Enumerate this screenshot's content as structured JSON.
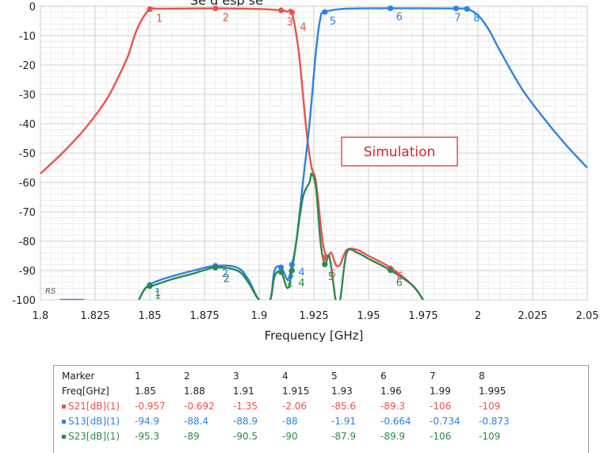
{
  "chart_data": {
    "type": "line",
    "title_fragment": "Se    d   esp  se",
    "xlabel": "Frequency [GHz]",
    "ylabel": "",
    "xlim": [
      1.8,
      2.05
    ],
    "ylim": [
      -100,
      0
    ],
    "x_ticks": [
      1.8,
      1.825,
      1.85,
      1.875,
      1.9,
      1.925,
      1.95,
      1.975,
      2.0,
      2.025,
      2.05
    ],
    "x_tick_labels": [
      "1.8",
      "1.825",
      "1.85",
      "1.875",
      "1.9",
      "1.925",
      "1.95",
      "1.975",
      "2",
      "2.025",
      "2.05"
    ],
    "y_ticks": [
      0,
      -10,
      -20,
      -30,
      -40,
      -50,
      -60,
      -70,
      -80,
      -90,
      -100
    ],
    "y_tick_labels": [
      "0",
      "-10",
      "-20",
      "-30",
      "-40",
      "-50",
      "-60",
      "-70",
      "-80",
      "-90",
      "-100"
    ],
    "grid": true,
    "corner_label": "RS",
    "annotation": "Simulation",
    "series": [
      {
        "name": "S21[dB](1)",
        "color": "#f0504a",
        "points": [
          [
            1.8,
            -57
          ],
          [
            1.81,
            -50
          ],
          [
            1.82,
            -42
          ],
          [
            1.83,
            -32
          ],
          [
            1.835,
            -25
          ],
          [
            1.84,
            -17
          ],
          [
            1.843,
            -10
          ],
          [
            1.846,
            -5
          ],
          [
            1.85,
            -1
          ],
          [
            1.855,
            -0.8
          ],
          [
            1.88,
            -0.7
          ],
          [
            1.9,
            -0.9
          ],
          [
            1.91,
            -1.35
          ],
          [
            1.913,
            -1.8
          ],
          [
            1.915,
            -2.1
          ],
          [
            1.918,
            -15
          ],
          [
            1.92,
            -30
          ],
          [
            1.922,
            -45
          ],
          [
            1.924,
            -55
          ],
          [
            1.926,
            -60
          ],
          [
            1.929,
            -80
          ],
          [
            1.931,
            -85
          ],
          [
            1.933,
            -84
          ],
          [
            1.935,
            -88
          ],
          [
            1.937,
            -88
          ],
          [
            1.94,
            -83
          ],
          [
            1.945,
            -83
          ],
          [
            1.95,
            -85
          ],
          [
            1.96,
            -89
          ],
          [
            1.97,
            -95
          ],
          [
            1.975,
            -100
          ]
        ]
      },
      {
        "name": "S13[dB](1)",
        "color": "#2b83e6",
        "points": [
          [
            1.845,
            -100
          ],
          [
            1.848,
            -96
          ],
          [
            1.852,
            -94
          ],
          [
            1.86,
            -92
          ],
          [
            1.87,
            -90
          ],
          [
            1.88,
            -88.4
          ],
          [
            1.89,
            -89
          ],
          [
            1.895,
            -93
          ],
          [
            1.9,
            -100
          ],
          [
            1.905,
            -100
          ],
          [
            1.907,
            -90
          ],
          [
            1.91,
            -88.9
          ],
          [
            1.913,
            -93
          ],
          [
            1.915,
            -88
          ],
          [
            1.917,
            -80
          ],
          [
            1.92,
            -60
          ],
          [
            1.923,
            -40
          ],
          [
            1.926,
            -15
          ],
          [
            1.928,
            -4
          ],
          [
            1.93,
            -1.9
          ],
          [
            1.94,
            -0.8
          ],
          [
            1.96,
            -0.66
          ],
          [
            1.99,
            -0.73
          ],
          [
            1.995,
            -0.9
          ],
          [
            2.0,
            -3
          ],
          [
            2.005,
            -8
          ],
          [
            2.01,
            -15
          ],
          [
            2.02,
            -28
          ],
          [
            2.03,
            -38
          ],
          [
            2.04,
            -47
          ],
          [
            2.05,
            -55
          ]
        ]
      },
      {
        "name": "S23[dB](1)",
        "color": "#2b8a4a",
        "points": [
          [
            1.845,
            -100
          ],
          [
            1.848,
            -96
          ],
          [
            1.852,
            -95
          ],
          [
            1.86,
            -93
          ],
          [
            1.87,
            -91
          ],
          [
            1.88,
            -89
          ],
          [
            1.89,
            -90
          ],
          [
            1.895,
            -94
          ],
          [
            1.9,
            -100
          ],
          [
            1.905,
            -100
          ],
          [
            1.907,
            -92
          ],
          [
            1.91,
            -90.5
          ],
          [
            1.913,
            -96
          ],
          [
            1.915,
            -90
          ],
          [
            1.917,
            -80
          ],
          [
            1.92,
            -65
          ],
          [
            1.923,
            -60
          ],
          [
            1.924,
            -57
          ],
          [
            1.926,
            -62
          ],
          [
            1.928,
            -80
          ],
          [
            1.93,
            -87.9
          ],
          [
            1.932,
            -85
          ],
          [
            1.934,
            -95
          ],
          [
            1.935,
            -100
          ],
          [
            1.937,
            -100
          ],
          [
            1.94,
            -84
          ],
          [
            1.945,
            -84
          ],
          [
            1.95,
            -86
          ],
          [
            1.96,
            -89.9
          ],
          [
            1.97,
            -95
          ],
          [
            1.975,
            -100
          ]
        ]
      }
    ],
    "markers": [
      {
        "id": "1",
        "freq": 1.85,
        "values": {
          "S21": -0.957,
          "S13": -94.9,
          "S23": -95.3
        }
      },
      {
        "id": "2",
        "freq": 1.88,
        "values": {
          "S21": -0.692,
          "S13": -88.4,
          "S23": -89
        }
      },
      {
        "id": "3",
        "freq": 1.91,
        "values": {
          "S21": -1.35,
          "S13": -88.9,
          "S23": -90.5
        }
      },
      {
        "id": "4",
        "freq": 1.915,
        "values": {
          "S21": -2.06,
          "S13": -88,
          "S23": -90
        }
      },
      {
        "id": "5",
        "freq": 1.93,
        "values": {
          "S21": -85.6,
          "S13": -1.91,
          "S23": -87.9
        }
      },
      {
        "id": "6",
        "freq": 1.96,
        "values": {
          "S21": -89.3,
          "S13": -0.664,
          "S23": -89.9
        }
      },
      {
        "id": "7",
        "freq": 1.99,
        "values": {
          "S21": -106,
          "S13": -0.734,
          "S23": -106
        }
      },
      {
        "id": "8",
        "freq": 1.995,
        "values": {
          "S21": -109,
          "S13": -0.873,
          "S23": -109
        }
      }
    ]
  },
  "table": {
    "header": [
      "Marker",
      "1",
      "2",
      "3",
      "4",
      "5",
      "6",
      "7",
      "8"
    ],
    "freq_row": [
      "Freq[GHz]",
      "1.85",
      "1.88",
      "1.91",
      "1.915",
      "1.93",
      "1.96",
      "1.99",
      "1.995"
    ],
    "rows": [
      {
        "label": "S21[dB](1)",
        "color": "#f0504a",
        "values": [
          "-0.957",
          "-0.692",
          "-1.35",
          "-2.06",
          "-85.6",
          "-89.3",
          "-106",
          "-109"
        ]
      },
      {
        "label": "S13[dB](1)",
        "color": "#2b83e6",
        "values": [
          "-94.9",
          "-88.4",
          "-88.9",
          "-88",
          "-1.91",
          "-0.664",
          "-0.734",
          "-0.873"
        ]
      },
      {
        "label": "S23[dB](1)",
        "color": "#2b8a4a",
        "values": [
          "-95.3",
          "-89",
          "-90.5",
          "-90",
          "-87.9",
          "-89.9",
          "-106",
          "-109"
        ]
      }
    ]
  }
}
